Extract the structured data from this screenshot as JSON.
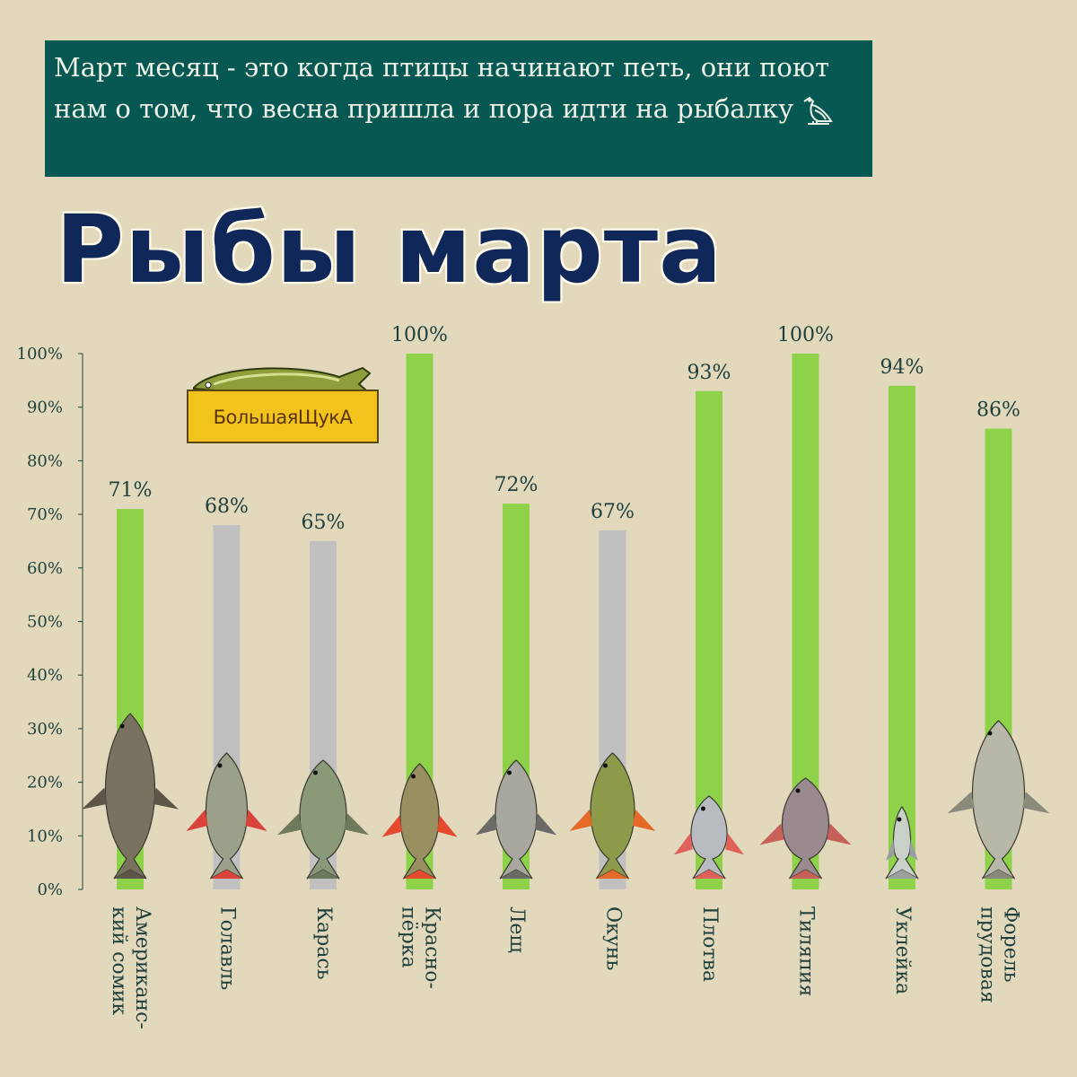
{
  "banner": {
    "text": "Март месяц - это когда птицы начинают петь, они поют нам о том, что весна пришла и пора идти на рыбалку",
    "icon": "bird-icon"
  },
  "title": "Рыбы марта",
  "logo": {
    "text": "БольшаяЩукА",
    "icon": "pike-icon"
  },
  "colors": {
    "highlight": "#8dd249",
    "normal": "#c0c0c0",
    "label": "#1e3f3a",
    "background": "#e2d9bd"
  },
  "chart_data": {
    "type": "bar",
    "categories": [
      "Американс-кий сомик",
      "Голавль",
      "Карась",
      "Красно-пёрка",
      "Лещ",
      "Окунь",
      "Плотва",
      "Тиляпия",
      "Уклейка",
      "Форель прудовая"
    ],
    "category_lines": [
      [
        "Американс-",
        "кий сомик"
      ],
      [
        "Голавль"
      ],
      [
        "Карась"
      ],
      [
        "Красно-",
        "пёрка"
      ],
      [
        "Лещ"
      ],
      [
        "Окунь"
      ],
      [
        "Плотва"
      ],
      [
        "Тиляпия"
      ],
      [
        "Уклейка"
      ],
      [
        "Форель",
        "прудовая"
      ]
    ],
    "values": [
      71,
      68,
      65,
      100,
      72,
      67,
      93,
      100,
      94,
      86
    ],
    "value_labels": [
      "71%",
      "68%",
      "65%",
      "100%",
      "72%",
      "67%",
      "93%",
      "100%",
      "94%",
      "86%"
    ],
    "highlighted": [
      true,
      false,
      false,
      true,
      true,
      false,
      true,
      true,
      true,
      true
    ],
    "ylim": [
      0,
      100
    ],
    "yticks": [
      "0%",
      "10%",
      "20%",
      "30%",
      "40%",
      "50%",
      "60%",
      "70%",
      "80%",
      "90%",
      "100%"
    ],
    "grid": false,
    "fish_icons": [
      "catfish-icon",
      "chub-icon",
      "crucian-icon",
      "rudd-icon",
      "bream-icon",
      "perch-icon",
      "roach-icon",
      "tilapia-icon",
      "bleak-icon",
      "trout-icon"
    ]
  }
}
